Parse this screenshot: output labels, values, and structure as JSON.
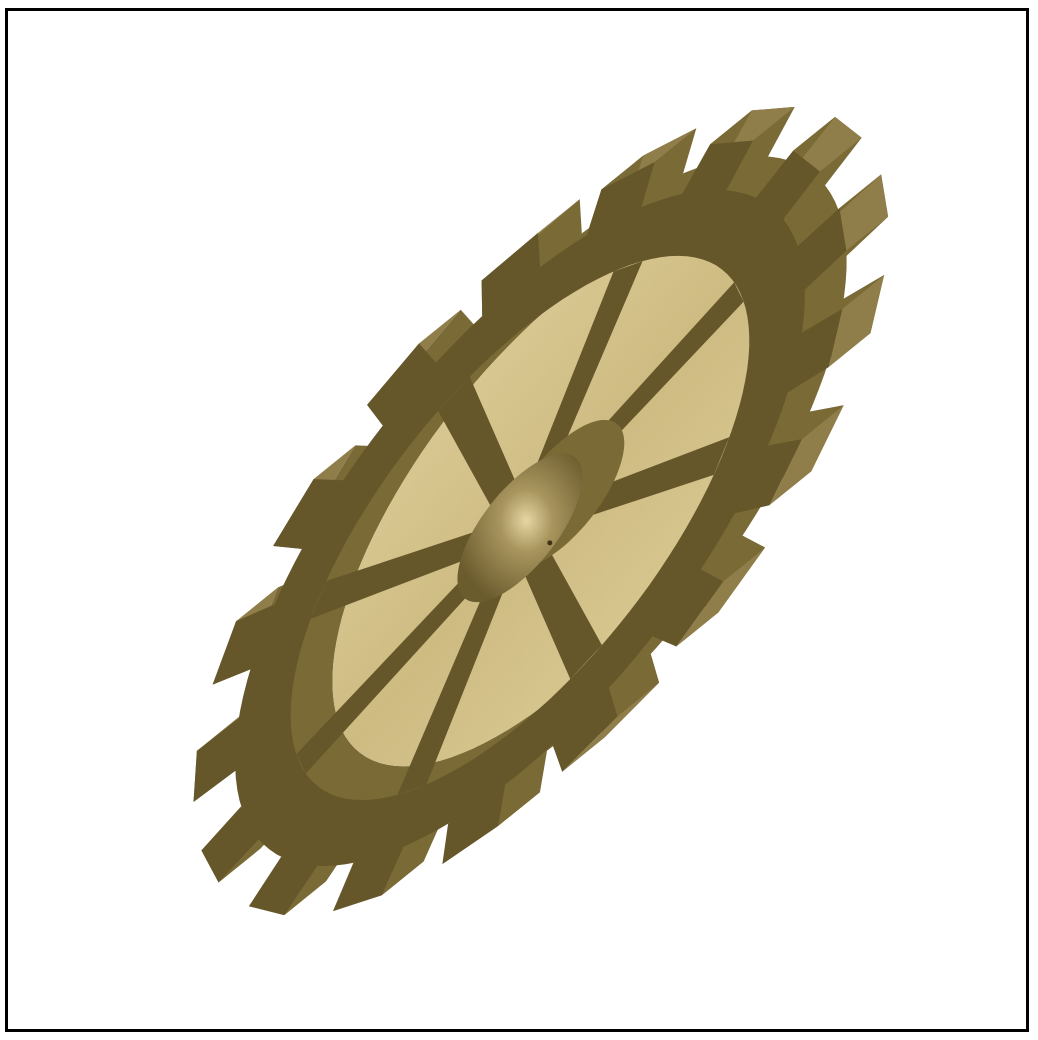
{
  "scene": {
    "object": "gear",
    "tooth_count": 17,
    "spoke_count": 8,
    "colors": {
      "background": "#ffffff",
      "frame": "#000000",
      "metal_dark": "#66572a",
      "metal_mid": "#7a6a36",
      "metal_light": "#8f7d4a",
      "highlight": "#e6d6a2"
    }
  }
}
